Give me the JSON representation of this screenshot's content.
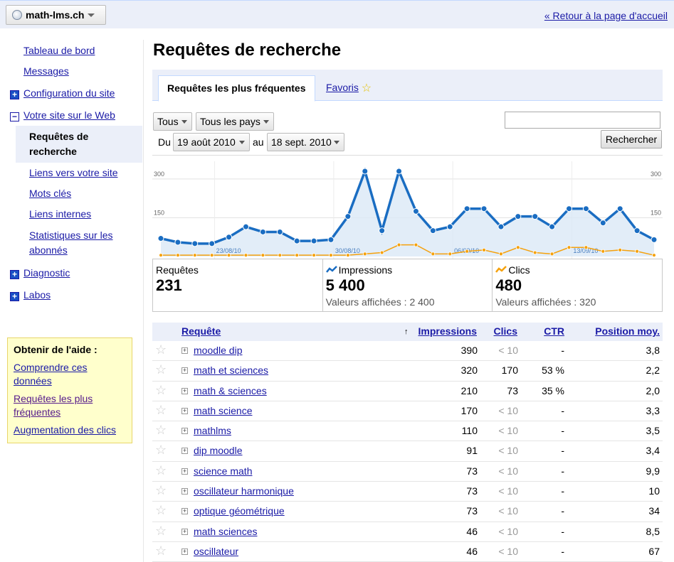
{
  "header": {
    "site": "math-lms.ch",
    "back_link": "« Retour à la page d'accueil"
  },
  "sidebar": {
    "dashboard": "Tableau de bord",
    "messages": "Messages",
    "config": "Configuration du site",
    "your_site": "Votre site sur le Web",
    "active_line1": "Requêtes de",
    "active_line2": "recherche",
    "links": "Liens vers votre site",
    "keywords": "Mots clés",
    "internal_links": "Liens internes",
    "subscribers_1": "Statistiques sur les",
    "subscribers_2": "abonnés",
    "diagnostics": "Diagnostic",
    "labs": "Labos"
  },
  "help": {
    "title": "Obtenir de l'aide :",
    "link1_a": "Comprendre ces",
    "link1_b": "données",
    "link2_a": "Requêtes les plus",
    "link2_b": "fréquentes",
    "link3": "Augmentation des clics"
  },
  "main": {
    "title": "Requêtes de recherche",
    "tab_top": "Requêtes les plus fréquentes",
    "tab_fav": "Favoris",
    "filter_all": "Tous",
    "filter_countries": "Tous les pays",
    "from_label": "Du",
    "from_date": "19 août 2010",
    "to_label": "au",
    "to_date": "18 sept. 2010",
    "search_button": "Rechercher",
    "search_value": ""
  },
  "chart_data": {
    "type": "line",
    "ylim": [
      0,
      300
    ],
    "y_ticks": [
      "300",
      "150"
    ],
    "x_tick_labels": [
      "23/08/10",
      "30/08/10",
      "06/09/10",
      "13/09/10"
    ],
    "x_tick_indices": [
      4,
      11,
      18,
      25
    ],
    "grid": true,
    "series": [
      {
        "name": "Impressions",
        "color": "#1a6dc2",
        "values": [
          70,
          55,
          50,
          50,
          75,
          115,
          95,
          95,
          60,
          60,
          65,
          155,
          330,
          100,
          330,
          175,
          100,
          115,
          185,
          185,
          115,
          155,
          155,
          115,
          185,
          185,
          130,
          185,
          100,
          65
        ]
      },
      {
        "name": "Clics",
        "color": "#f5a10c",
        "values": [
          5,
          5,
          5,
          5,
          5,
          5,
          5,
          5,
          5,
          5,
          5,
          5,
          10,
          15,
          45,
          45,
          10,
          10,
          20,
          25,
          10,
          35,
          15,
          10,
          35,
          35,
          20,
          25,
          20,
          5
        ]
      }
    ]
  },
  "summary": {
    "queries_label": "Requêtes",
    "queries_value": "231",
    "impr_label": "Impressions",
    "impr_value": "5 400",
    "impr_sub": "Valeurs affichées : 2 400",
    "clicks_label": "Clics",
    "clicks_value": "480",
    "clicks_sub": "Valeurs affichées : 320"
  },
  "table": {
    "headers": {
      "query": "Requête",
      "sort_arrow": "↑",
      "impressions": "Impressions",
      "clicks": "Clics",
      "ctr": "CTR",
      "position": "Position moy."
    },
    "rows": [
      {
        "q": "moodle dip",
        "imp": "390",
        "clk": "< 10",
        "ctr": "-",
        "pos": "3,8"
      },
      {
        "q": "math et sciences",
        "imp": "320",
        "clk": "170",
        "ctr": "53 %",
        "pos": "2,2"
      },
      {
        "q": "math & sciences",
        "imp": "210",
        "clk": "73",
        "ctr": "35 %",
        "pos": "2,0"
      },
      {
        "q": "math science",
        "imp": "170",
        "clk": "< 10",
        "ctr": "-",
        "pos": "3,3"
      },
      {
        "q": "mathlms",
        "imp": "110",
        "clk": "< 10",
        "ctr": "-",
        "pos": "3,5"
      },
      {
        "q": "dip moodle",
        "imp": "91",
        "clk": "< 10",
        "ctr": "-",
        "pos": "3,4"
      },
      {
        "q": "science math",
        "imp": "73",
        "clk": "< 10",
        "ctr": "-",
        "pos": "9,9"
      },
      {
        "q": "oscillateur harmonique",
        "imp": "73",
        "clk": "< 10",
        "ctr": "-",
        "pos": "10"
      },
      {
        "q": "optique géométrique",
        "imp": "73",
        "clk": "< 10",
        "ctr": "-",
        "pos": "34"
      },
      {
        "q": "math sciences",
        "imp": "46",
        "clk": "< 10",
        "ctr": "-",
        "pos": "8,5"
      },
      {
        "q": "oscillateur",
        "imp": "46",
        "clk": "< 10",
        "ctr": "-",
        "pos": "67"
      }
    ]
  }
}
